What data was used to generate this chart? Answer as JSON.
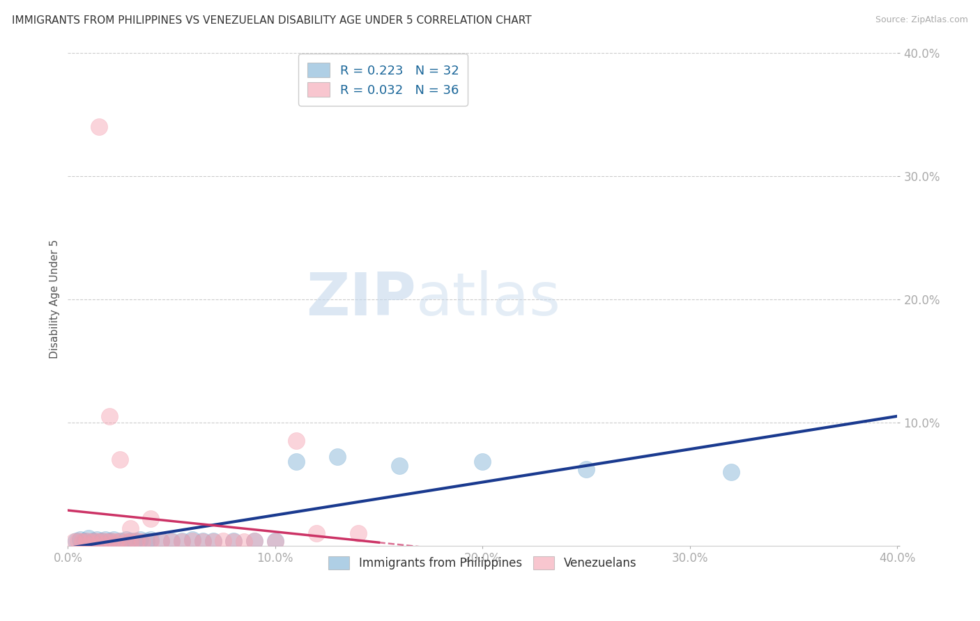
{
  "title": "IMMIGRANTS FROM PHILIPPINES VS VENEZUELAN DISABILITY AGE UNDER 5 CORRELATION CHART",
  "source": "Source: ZipAtlas.com",
  "ylabel": "Disability Age Under 5",
  "xlim": [
    0.0,
    0.4
  ],
  "ylim": [
    0.0,
    0.4
  ],
  "xticks": [
    0.0,
    0.1,
    0.2,
    0.3,
    0.4
  ],
  "yticks": [
    0.0,
    0.1,
    0.2,
    0.3,
    0.4
  ],
  "xticklabels": [
    "0.0%",
    "10.0%",
    "20.0%",
    "30.0%",
    "40.0%"
  ],
  "yticklabels": [
    "",
    "10.0%",
    "20.0%",
    "30.0%",
    "40.0%"
  ],
  "background_color": "#ffffff",
  "grid_color": "#cccccc",
  "blue_color": "#7bafd4",
  "pink_color": "#f4a0b0",
  "blue_line_color": "#1a3a8f",
  "pink_line_color": "#cc3366",
  "legend_blue_label": "R = 0.223   N = 32",
  "legend_pink_label": "R = 0.032   N = 36",
  "legend_label_blue": "Immigrants from Philippines",
  "legend_label_pink": "Venezuelans",
  "blue_scatter_x": [
    0.004,
    0.006,
    0.008,
    0.01,
    0.012,
    0.014,
    0.016,
    0.018,
    0.02,
    0.022,
    0.025,
    0.028,
    0.03,
    0.032,
    0.035,
    0.038,
    0.04,
    0.045,
    0.05,
    0.055,
    0.06,
    0.065,
    0.07,
    0.08,
    0.09,
    0.1,
    0.11,
    0.13,
    0.16,
    0.2,
    0.25,
    0.32
  ],
  "blue_scatter_y": [
    0.004,
    0.005,
    0.004,
    0.006,
    0.004,
    0.005,
    0.004,
    0.005,
    0.004,
    0.005,
    0.004,
    0.005,
    0.004,
    0.004,
    0.005,
    0.004,
    0.005,
    0.004,
    0.004,
    0.004,
    0.005,
    0.004,
    0.004,
    0.004,
    0.004,
    0.004,
    0.068,
    0.072,
    0.065,
    0.068,
    0.062,
    0.06
  ],
  "pink_scatter_x": [
    0.003,
    0.005,
    0.007,
    0.009,
    0.011,
    0.013,
    0.015,
    0.017,
    0.019,
    0.021,
    0.023,
    0.025,
    0.028,
    0.03,
    0.033,
    0.036,
    0.04,
    0.045,
    0.05,
    0.055,
    0.06,
    0.065,
    0.07,
    0.075,
    0.08,
    0.085,
    0.09,
    0.1,
    0.11,
    0.12,
    0.14,
    0.015,
    0.02,
    0.025,
    0.03,
    0.04
  ],
  "pink_scatter_y": [
    0.003,
    0.004,
    0.003,
    0.004,
    0.003,
    0.004,
    0.003,
    0.004,
    0.003,
    0.004,
    0.003,
    0.004,
    0.003,
    0.003,
    0.004,
    0.003,
    0.003,
    0.004,
    0.003,
    0.003,
    0.004,
    0.003,
    0.003,
    0.004,
    0.003,
    0.003,
    0.004,
    0.003,
    0.085,
    0.01,
    0.01,
    0.34,
    0.105,
    0.07,
    0.014,
    0.022
  ]
}
